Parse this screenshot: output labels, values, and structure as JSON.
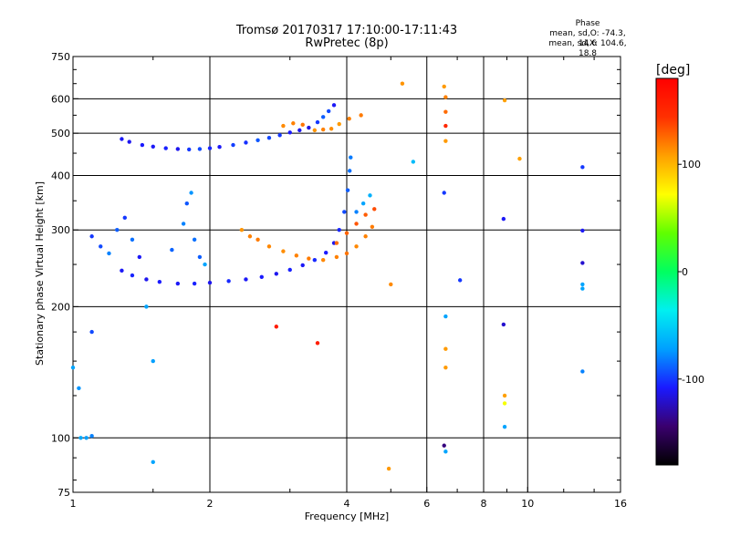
{
  "header": {
    "title_line1": "Tromsø 20170317 17:10:00-17:11:43",
    "title_line2": "RwPretec (8p)",
    "phase_head": "Phase",
    "phase_stats_o": "mean, sd,O: -74.3, 14.6",
    "phase_stats_x": "mean, sd,X: 104.6, 18.8"
  },
  "colorbar": {
    "unit": "[deg]",
    "tick_labels": [
      "100",
      "0",
      "-100"
    ],
    "tick_values": [
      100,
      0,
      -100
    ],
    "range": [
      -180,
      180
    ],
    "colors": [
      "#000000",
      "#3a006e",
      "#1a1aff",
      "#00a0ff",
      "#00f0f0",
      "#00ff60",
      "#60ff00",
      "#ffff00",
      "#ffa000",
      "#ff3000",
      "#ff0000"
    ]
  },
  "chart_data": {
    "type": "scatter",
    "title": "Tromsø 20170317 17:10:00-17:11:43",
    "subtitle": "RwPretec (8p)",
    "xlabel": "Frequency [MHz]",
    "ylabel": "Stationary phase Virtual Height [km]",
    "xscale": "log",
    "yscale": "log",
    "xlim": [
      1,
      16
    ],
    "ylim": [
      75,
      750
    ],
    "x_ticks": [
      1,
      2,
      4,
      6,
      8,
      10,
      16
    ],
    "x_tick_labels": [
      "1",
      "2",
      "4",
      "6",
      "8",
      "10",
      "16"
    ],
    "y_ticks": [
      75,
      100,
      200,
      300,
      400,
      500,
      600,
      750
    ],
    "y_tick_labels": [
      "75",
      "100",
      "200",
      "300",
      "400",
      "500",
      "600",
      "750"
    ],
    "grid_x": [
      2,
      4,
      6,
      8,
      10
    ],
    "grid_y": [
      100,
      200,
      300,
      400,
      500,
      600
    ],
    "grid": true,
    "color_encodes": "phase (deg)",
    "points": [
      {
        "x": 1.28,
        "y": 485,
        "p": -110
      },
      {
        "x": 1.33,
        "y": 478,
        "p": -112
      },
      {
        "x": 1.42,
        "y": 470,
        "p": -108
      },
      {
        "x": 1.5,
        "y": 466,
        "p": -110
      },
      {
        "x": 1.6,
        "y": 462,
        "p": -106
      },
      {
        "x": 1.7,
        "y": 460,
        "p": -112
      },
      {
        "x": 1.8,
        "y": 459,
        "p": -100
      },
      {
        "x": 1.9,
        "y": 460,
        "p": -95
      },
      {
        "x": 2.0,
        "y": 462,
        "p": -105
      },
      {
        "x": 2.1,
        "y": 465,
        "p": -110
      },
      {
        "x": 2.25,
        "y": 470,
        "p": -98
      },
      {
        "x": 2.4,
        "y": 476,
        "p": -102
      },
      {
        "x": 2.55,
        "y": 482,
        "p": -92
      },
      {
        "x": 2.7,
        "y": 488,
        "p": -96
      },
      {
        "x": 2.85,
        "y": 495,
        "p": -100
      },
      {
        "x": 3.0,
        "y": 502,
        "p": -108
      },
      {
        "x": 3.15,
        "y": 508,
        "p": -112
      },
      {
        "x": 3.3,
        "y": 515,
        "p": -115
      },
      {
        "x": 3.45,
        "y": 530,
        "p": -100
      },
      {
        "x": 3.55,
        "y": 545,
        "p": -90
      },
      {
        "x": 3.65,
        "y": 562,
        "p": -95
      },
      {
        "x": 3.75,
        "y": 580,
        "p": -110
      },
      {
        "x": 2.9,
        "y": 520,
        "p": 115
      },
      {
        "x": 3.05,
        "y": 527,
        "p": 118
      },
      {
        "x": 3.2,
        "y": 523,
        "p": 122
      },
      {
        "x": 3.4,
        "y": 508,
        "p": 112
      },
      {
        "x": 3.55,
        "y": 510,
        "p": 118
      },
      {
        "x": 3.7,
        "y": 512,
        "p": 114
      },
      {
        "x": 3.85,
        "y": 525,
        "p": 110
      },
      {
        "x": 4.05,
        "y": 540,
        "p": 118
      },
      {
        "x": 4.3,
        "y": 550,
        "p": 120
      },
      {
        "x": 1.28,
        "y": 242,
        "p": -110
      },
      {
        "x": 1.35,
        "y": 236,
        "p": -105
      },
      {
        "x": 1.45,
        "y": 231,
        "p": -112
      },
      {
        "x": 1.55,
        "y": 228,
        "p": -108
      },
      {
        "x": 1.7,
        "y": 226,
        "p": -110
      },
      {
        "x": 1.85,
        "y": 226,
        "p": -106
      },
      {
        "x": 2.0,
        "y": 227,
        "p": -112
      },
      {
        "x": 2.2,
        "y": 229,
        "p": -104
      },
      {
        "x": 2.4,
        "y": 231,
        "p": -110
      },
      {
        "x": 2.6,
        "y": 234,
        "p": -108
      },
      {
        "x": 2.8,
        "y": 238,
        "p": -112
      },
      {
        "x": 3.0,
        "y": 243,
        "p": -106
      },
      {
        "x": 3.2,
        "y": 249,
        "p": -110
      },
      {
        "x": 3.4,
        "y": 256,
        "p": -104
      },
      {
        "x": 3.6,
        "y": 266,
        "p": -108
      },
      {
        "x": 3.75,
        "y": 280,
        "p": -112
      },
      {
        "x": 3.85,
        "y": 300,
        "p": -105
      },
      {
        "x": 3.95,
        "y": 330,
        "p": -95
      },
      {
        "x": 4.02,
        "y": 370,
        "p": -90
      },
      {
        "x": 4.06,
        "y": 410,
        "p": -85
      },
      {
        "x": 4.08,
        "y": 440,
        "p": -82
      },
      {
        "x": 1.1,
        "y": 290,
        "p": -100
      },
      {
        "x": 1.15,
        "y": 275,
        "p": -95
      },
      {
        "x": 1.2,
        "y": 265,
        "p": -80
      },
      {
        "x": 1.25,
        "y": 300,
        "p": -90
      },
      {
        "x": 1.3,
        "y": 320,
        "p": -100
      },
      {
        "x": 1.35,
        "y": 285,
        "p": -85
      },
      {
        "x": 1.4,
        "y": 260,
        "p": -110
      },
      {
        "x": 1.65,
        "y": 270,
        "p": -88
      },
      {
        "x": 1.75,
        "y": 310,
        "p": -80
      },
      {
        "x": 1.78,
        "y": 345,
        "p": -92
      },
      {
        "x": 1.82,
        "y": 365,
        "p": -75
      },
      {
        "x": 1.85,
        "y": 285,
        "p": -85
      },
      {
        "x": 1.9,
        "y": 260,
        "p": -90
      },
      {
        "x": 1.95,
        "y": 250,
        "p": -70
      },
      {
        "x": 2.35,
        "y": 300,
        "p": 112
      },
      {
        "x": 2.45,
        "y": 290,
        "p": 118
      },
      {
        "x": 2.55,
        "y": 285,
        "p": 120
      },
      {
        "x": 2.7,
        "y": 275,
        "p": 116
      },
      {
        "x": 2.9,
        "y": 268,
        "p": 114
      },
      {
        "x": 3.1,
        "y": 262,
        "p": 118
      },
      {
        "x": 3.3,
        "y": 258,
        "p": 120
      },
      {
        "x": 3.55,
        "y": 256,
        "p": 116
      },
      {
        "x": 3.8,
        "y": 260,
        "p": 118
      },
      {
        "x": 4.0,
        "y": 265,
        "p": 122
      },
      {
        "x": 4.2,
        "y": 275,
        "p": 116
      },
      {
        "x": 4.4,
        "y": 290,
        "p": 118
      },
      {
        "x": 4.55,
        "y": 305,
        "p": 120
      },
      {
        "x": 3.8,
        "y": 280,
        "p": 125
      },
      {
        "x": 4.0,
        "y": 295,
        "p": 128
      },
      {
        "x": 4.2,
        "y": 310,
        "p": 132
      },
      {
        "x": 4.4,
        "y": 325,
        "p": 130
      },
      {
        "x": 4.6,
        "y": 335,
        "p": 135
      },
      {
        "x": 4.2,
        "y": 330,
        "p": -80
      },
      {
        "x": 4.35,
        "y": 345,
        "p": -70
      },
      {
        "x": 4.5,
        "y": 360,
        "p": -65
      },
      {
        "x": 1.0,
        "y": 145,
        "p": -70
      },
      {
        "x": 1.03,
        "y": 130,
        "p": -75
      },
      {
        "x": 1.04,
        "y": 100,
        "p": -68
      },
      {
        "x": 1.07,
        "y": 100,
        "p": -72
      },
      {
        "x": 1.1,
        "y": 101,
        "p": -80
      },
      {
        "x": 1.1,
        "y": 175,
        "p": -95
      },
      {
        "x": 1.45,
        "y": 200,
        "p": -70
      },
      {
        "x": 1.5,
        "y": 150,
        "p": -72
      },
      {
        "x": 1.5,
        "y": 88,
        "p": -70
      },
      {
        "x": 2.8,
        "y": 180,
        "p": 160
      },
      {
        "x": 3.45,
        "y": 165,
        "p": 158
      },
      {
        "x": 4.95,
        "y": 85,
        "p": 110
      },
      {
        "x": 5.0,
        "y": 225,
        "p": 115
      },
      {
        "x": 5.3,
        "y": 650,
        "p": 112
      },
      {
        "x": 5.6,
        "y": 430,
        "p": -60
      },
      {
        "x": 6.55,
        "y": 640,
        "p": 110
      },
      {
        "x": 6.6,
        "y": 605,
        "p": 118
      },
      {
        "x": 6.6,
        "y": 560,
        "p": 125
      },
      {
        "x": 6.6,
        "y": 520,
        "p": 150
      },
      {
        "x": 6.6,
        "y": 480,
        "p": 110
      },
      {
        "x": 6.55,
        "y": 365,
        "p": -100
      },
      {
        "x": 6.6,
        "y": 190,
        "p": -70
      },
      {
        "x": 6.6,
        "y": 160,
        "p": 110
      },
      {
        "x": 6.6,
        "y": 145,
        "p": 110
      },
      {
        "x": 6.55,
        "y": 96,
        "p": -140
      },
      {
        "x": 6.6,
        "y": 93,
        "p": -70
      },
      {
        "x": 7.1,
        "y": 230,
        "p": -100
      },
      {
        "x": 8.9,
        "y": 595,
        "p": 108
      },
      {
        "x": 8.85,
        "y": 318,
        "p": -110
      },
      {
        "x": 8.85,
        "y": 182,
        "p": -120
      },
      {
        "x": 8.9,
        "y": 125,
        "p": 108
      },
      {
        "x": 8.9,
        "y": 120,
        "p": 70
      },
      {
        "x": 8.9,
        "y": 106,
        "p": -70
      },
      {
        "x": 9.6,
        "y": 437,
        "p": 108
      },
      {
        "x": 13.2,
        "y": 418,
        "p": -100
      },
      {
        "x": 13.2,
        "y": 299,
        "p": -110
      },
      {
        "x": 13.2,
        "y": 252,
        "p": -120
      },
      {
        "x": 13.2,
        "y": 225,
        "p": -70
      },
      {
        "x": 13.2,
        "y": 220,
        "p": -70
      },
      {
        "x": 13.2,
        "y": 142,
        "p": -80
      }
    ]
  }
}
